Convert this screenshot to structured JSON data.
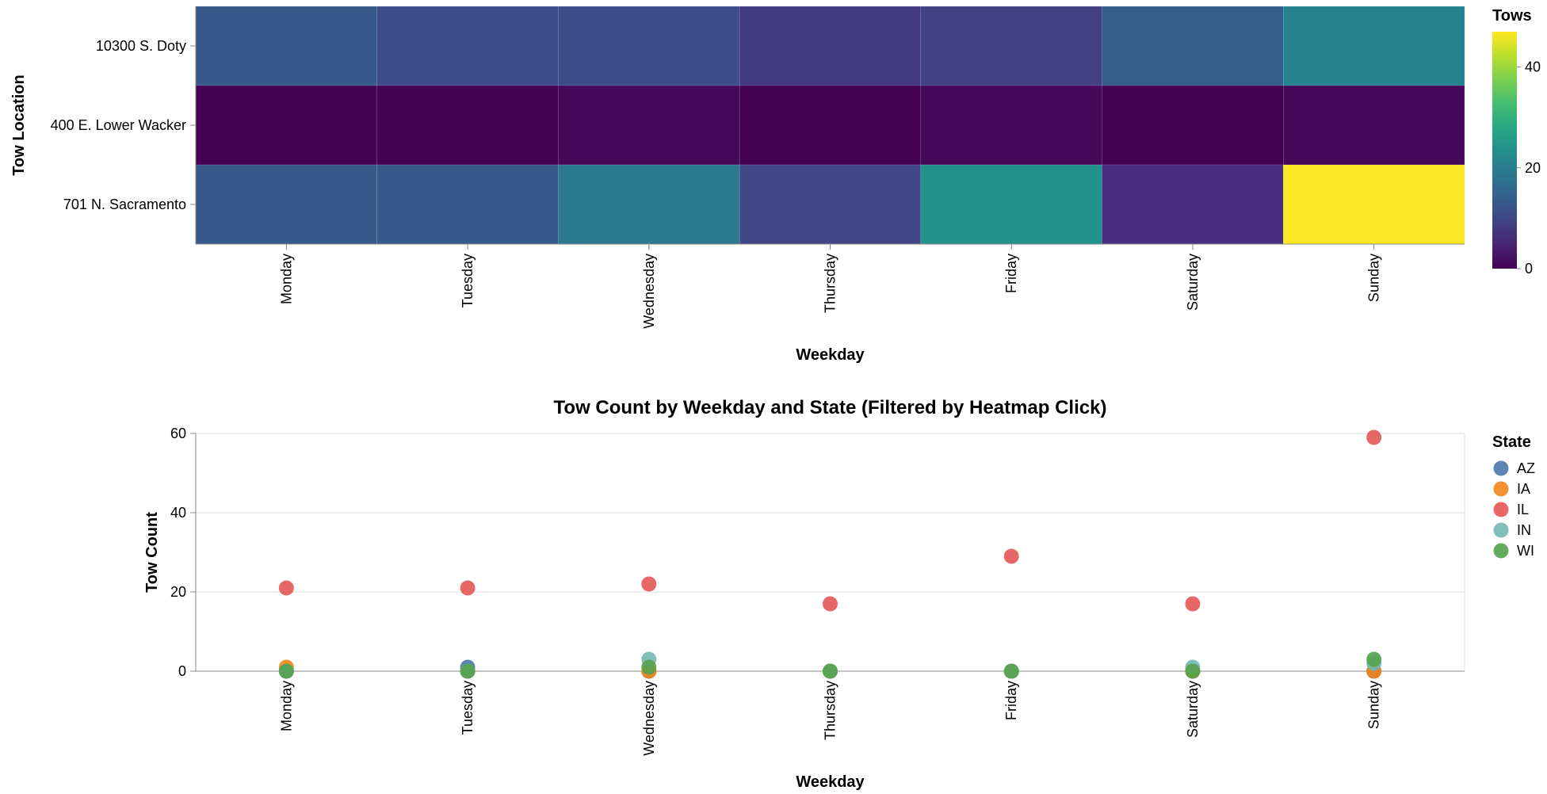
{
  "chart_data": [
    {
      "type": "heatmap",
      "title": "",
      "xlabel": "Weekday",
      "ylabel": "Tow Location",
      "x_categories": [
        "Monday",
        "Tuesday",
        "Wednesday",
        "Thursday",
        "Friday",
        "Saturday",
        "Sunday"
      ],
      "y_categories": [
        "10300 S. Doty",
        "400 E. Lower Wacker",
        "701 N. Sacramento"
      ],
      "values": [
        [
          13,
          11,
          11,
          8,
          9,
          14,
          21
        ],
        [
          0,
          0,
          1,
          0,
          1,
          0,
          1
        ],
        [
          13,
          13,
          19,
          10,
          24,
          6,
          47
        ]
      ],
      "legend": {
        "title": "Tows",
        "ticks": [
          0,
          20,
          40
        ],
        "domain": [
          0,
          47
        ],
        "placement": "right",
        "colorscale": "viridis"
      }
    },
    {
      "type": "scatter",
      "title": "Tow Count by Weekday and State (Filtered by Heatmap Click)",
      "xlabel": "Weekday",
      "ylabel": "Tow Count",
      "categories": [
        "Monday",
        "Tuesday",
        "Wednesday",
        "Thursday",
        "Friday",
        "Saturday",
        "Sunday"
      ],
      "ylim": [
        0,
        60
      ],
      "yticks": [
        0,
        20,
        40,
        60
      ],
      "grid": true,
      "legend": {
        "title": "State",
        "placement": "right"
      },
      "series": [
        {
          "name": "AZ",
          "color": "#4c78a8",
          "values": [
            0,
            1,
            0,
            0,
            0,
            0,
            0
          ]
        },
        {
          "name": "IA",
          "color": "#f58518",
          "values": [
            1,
            0,
            0,
            0,
            0,
            0,
            0
          ]
        },
        {
          "name": "IL",
          "color": "#e45756",
          "values": [
            21,
            21,
            22,
            17,
            29,
            17,
            59
          ]
        },
        {
          "name": "IN",
          "color": "#72b7b2",
          "values": [
            0,
            0,
            3,
            0,
            0,
            1,
            2
          ]
        },
        {
          "name": "WI",
          "color": "#54a24b",
          "values": [
            0,
            0,
            1,
            0,
            0,
            0,
            3
          ]
        }
      ]
    }
  ]
}
